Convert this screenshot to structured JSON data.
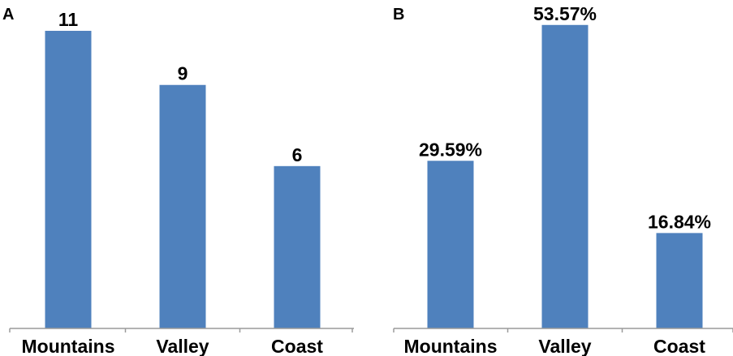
{
  "chart_data": [
    {
      "type": "bar",
      "panel_label": "A",
      "categories": [
        "Mountains",
        "Valley",
        "Coast"
      ],
      "values": [
        11,
        9,
        6
      ],
      "value_labels": [
        "11",
        "9",
        "6"
      ],
      "ylim": [
        0,
        11.6
      ],
      "bar_color": "#4f81bd",
      "grid": false
    },
    {
      "type": "bar",
      "panel_label": "B",
      "categories": [
        "Mountains",
        "Valley",
        "Coast"
      ],
      "values": [
        29.59,
        53.57,
        16.84
      ],
      "value_labels": [
        "29.59%",
        "53.57%",
        "16.84%"
      ],
      "ylim": [
        0,
        55.4
      ],
      "bar_color": "#4f81bd",
      "grid": false
    }
  ]
}
